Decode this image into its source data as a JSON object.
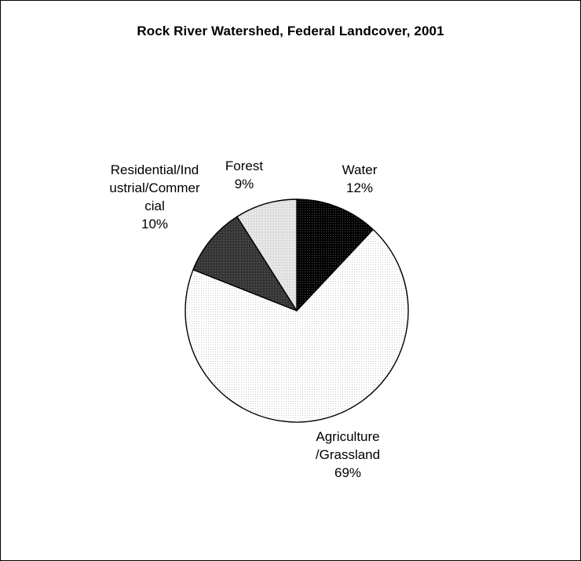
{
  "chart_data": {
    "type": "pie",
    "title": "Rock River Watershed, Federal Landcover, 2001",
    "slices": [
      {
        "label_lines": [
          "Water",
          "12%"
        ],
        "value": 12,
        "fill": "#111111",
        "pattern": "dark-dots"
      },
      {
        "label_lines": [
          "Agriculture",
          "/Grassland",
          "69%"
        ],
        "value": 69,
        "fill": "#f7f7f7",
        "pattern": "light-dots"
      },
      {
        "label_lines": [
          "Residential/Ind",
          "ustrial/Commer",
          "cial",
          "10%"
        ],
        "value": 10,
        "fill": "#3a3a3a",
        "pattern": "medium-dots"
      },
      {
        "label_lines": [
          "Forest",
          "9%"
        ],
        "value": 9,
        "fill": "#dddddd",
        "pattern": "grey-dots"
      }
    ],
    "start": "12 o'clock",
    "direction": "clockwise",
    "legend": "none"
  }
}
